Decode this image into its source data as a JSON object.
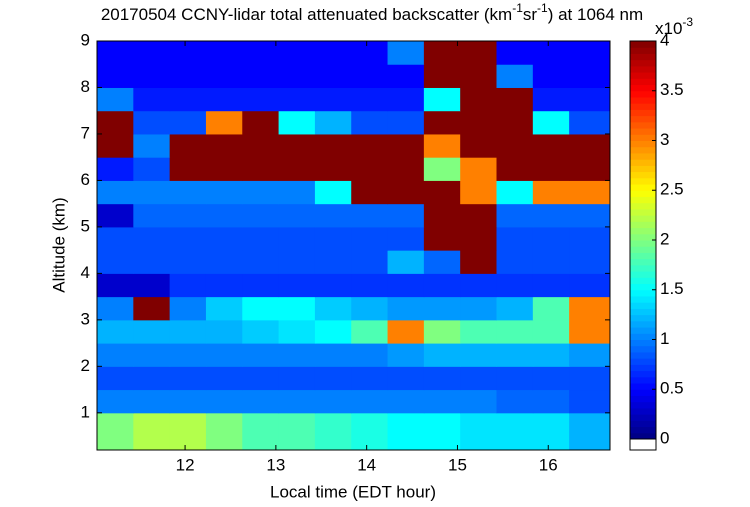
{
  "chart_data": {
    "type": "heatmap",
    "title": [
      "20170504 CCNY-lidar total attenuated backscatter (km",
      "-1",
      "sr",
      "-1",
      ") at 1064 nm"
    ],
    "x_label": "Local time (EDT hour)",
    "y_label": "Altitude (km)",
    "colorbar_label": [
      "x10",
      "-3"
    ],
    "xlim": [
      11.03,
      16.68
    ],
    "xticks": [
      12,
      13,
      14,
      15,
      16
    ],
    "ylim": [
      0.2,
      9
    ],
    "yticks": [
      1,
      2,
      3,
      4,
      5,
      6,
      7,
      8,
      9
    ],
    "clim": [
      0,
      4
    ],
    "cticks": [
      0,
      0.5,
      1,
      1.5,
      2,
      2.5,
      3,
      3.5,
      4
    ],
    "colormap": "jet",
    "x_edges": [
      11.03,
      11.43,
      11.83,
      12.23,
      12.63,
      13.03,
      13.43,
      13.83,
      14.23,
      14.63,
      15.03,
      15.43,
      15.83,
      16.23,
      16.68
    ],
    "y_edges": [
      0.2,
      1,
      1.5,
      2,
      2.5,
      3,
      3.5,
      4,
      4.5,
      5,
      5.5,
      6,
      6.5,
      7,
      7.5,
      8,
      8.5,
      9
    ],
    "values": [
      [
        2,
        2.2,
        2.2,
        2,
        1.8,
        1.8,
        1.7,
        1.6,
        1.5,
        1.5,
        1.4,
        1.4,
        1.4,
        1.2
      ],
      [
        1,
        1,
        1,
        1,
        1,
        1,
        1,
        1,
        1,
        1,
        1,
        0.9,
        0.9,
        0.8
      ],
      [
        0.8,
        0.8,
        0.8,
        0.8,
        0.8,
        0.8,
        0.8,
        0.8,
        0.8,
        0.8,
        0.8,
        0.8,
        0.8,
        0.8
      ],
      [
        1,
        1,
        1,
        1,
        1,
        1,
        1,
        1,
        1.1,
        1.2,
        1.2,
        1.2,
        1.2,
        1.1
      ],
      [
        1.2,
        1.2,
        1.2,
        1.2,
        1.3,
        1.4,
        1.5,
        1.8,
        3,
        2,
        1.8,
        1.8,
        1.8,
        3
      ],
      [
        1,
        4.5,
        1,
        1.3,
        1.5,
        1.5,
        1.3,
        1.2,
        1.1,
        1.1,
        1.1,
        1.2,
        1.8,
        3
      ],
      [
        0.3,
        0.3,
        0.7,
        0.7,
        0.7,
        0.7,
        0.7,
        0.7,
        0.7,
        0.7,
        0.7,
        0.7,
        0.7,
        0.7
      ],
      [
        0.8,
        0.8,
        0.8,
        0.8,
        0.8,
        0.8,
        0.8,
        0.8,
        1.2,
        0.9,
        4.5,
        0.8,
        0.8,
        0.8
      ],
      [
        0.8,
        0.8,
        0.8,
        0.8,
        0.8,
        0.8,
        0.8,
        0.8,
        0.8,
        4.5,
        4.5,
        0.8,
        0.8,
        0.8
      ],
      [
        0.3,
        0.9,
        0.9,
        0.9,
        0.9,
        0.9,
        0.9,
        0.9,
        0.9,
        4.5,
        4.5,
        0.9,
        0.9,
        0.9
      ],
      [
        1,
        1,
        1,
        1,
        1,
        1,
        1.5,
        4.5,
        4.5,
        4.5,
        3,
        1.5,
        3,
        3
      ],
      [
        0.6,
        0.8,
        4.5,
        4.5,
        4.5,
        4.5,
        4.5,
        4.5,
        4.5,
        2,
        3,
        4.5,
        4.5,
        4.5
      ],
      [
        4.5,
        1,
        4.5,
        4.5,
        4.5,
        4.5,
        4.5,
        4.5,
        4.5,
        3,
        4.5,
        4.5,
        4.5,
        4.5
      ],
      [
        4.5,
        0.8,
        0.8,
        3,
        4.5,
        1.5,
        1.2,
        0.8,
        0.8,
        4.5,
        4.5,
        4.5,
        1.5,
        0.8
      ],
      [
        1,
        0.6,
        0.6,
        0.6,
        0.6,
        0.6,
        0.6,
        0.6,
        0.6,
        1.5,
        4.5,
        4.5,
        0.6,
        0.6
      ],
      [
        0.5,
        0.5,
        0.5,
        0.5,
        0.5,
        0.5,
        0.5,
        0.5,
        0.5,
        4.5,
        4.5,
        1,
        0.5,
        0.5
      ],
      [
        0.5,
        0.5,
        0.5,
        0.5,
        0.5,
        0.5,
        0.5,
        0.5,
        1,
        4.5,
        4.5,
        0.5,
        0.5,
        0.5
      ]
    ]
  }
}
